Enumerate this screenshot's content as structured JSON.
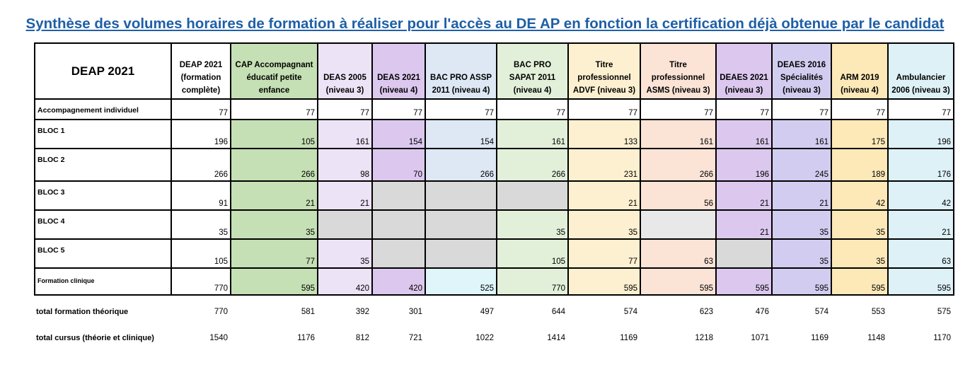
{
  "title": "Synthèse des volumes horaires de formation à réaliser pour l'accès au DE AP en fonction la certification déjà obtenue par le candidat",
  "corner_label": "DEAP 2021",
  "columns": [
    {
      "label": "DEAP 2021 (formation complète)",
      "color": "#ffffff"
    },
    {
      "label": "CAP Accompagnant éducatif petite enfance",
      "color": "#c5e0b4"
    },
    {
      "label": "DEAS 2005 (niveau 3)",
      "color": "#ede3f7"
    },
    {
      "label": "DEAS 2021 (niveau 4)",
      "color": "#dcc8ee"
    },
    {
      "label": "BAC PRO ASSP 2011 (niveau 4)",
      "color": "#dde8f4"
    },
    {
      "label": "BAC PRO SAPAT 2011 (niveau 4)",
      "color": "#e2f0d9"
    },
    {
      "label": "Titre professionnel ADVF (niveau 3)",
      "color": "#fdf0d0"
    },
    {
      "label": "Titre professionnel ASMS (niveau 3)",
      "color": "#fbe3d6"
    },
    {
      "label": "DEAES 2021 (niveau 3)",
      "color": "#dcc8ee"
    },
    {
      "label": "DEAES 2016 Spécialités (niveau 3)",
      "color": "#d2cdf0"
    },
    {
      "label": "ARM 2019 (niveau 4)",
      "color": "#fde9b8"
    },
    {
      "label": "Ambulancier 2006 (niveau 3)",
      "color": "#ddf1f6"
    }
  ],
  "gray": "#d9d9d9",
  "light_gray": "#e8e8e8",
  "rows": [
    {
      "label": "Accompagnement individuel",
      "values": [
        "77",
        "77",
        "77",
        "77",
        "77",
        "77",
        "77",
        "77",
        "77",
        "77",
        "77",
        "77"
      ],
      "white": true
    },
    {
      "label": "BLOC 1",
      "values": [
        "196",
        "105",
        "161",
        "154",
        "154",
        "161",
        "133",
        "161",
        "161",
        "161",
        "175",
        "196"
      ]
    },
    {
      "label": "BLOC 2",
      "values": [
        "266",
        "266",
        "98",
        "70",
        "266",
        "266",
        "231",
        "266",
        "196",
        "245",
        "189",
        "176"
      ]
    },
    {
      "label": "BLOC 3",
      "values": [
        "91",
        "21",
        "21",
        "",
        "",
        "",
        "21",
        "56",
        "21",
        "21",
        "42",
        "42"
      ],
      "grays": [
        3,
        4,
        5
      ]
    },
    {
      "label": "BLOC 4",
      "values": [
        "35",
        "35",
        "",
        "",
        "",
        "35",
        "35",
        "",
        "21",
        "35",
        "35",
        "21"
      ],
      "grays": [
        2,
        3,
        4
      ],
      "light_grays": [
        7
      ]
    },
    {
      "label": "BLOC 5",
      "values": [
        "105",
        "77",
        "35",
        "",
        "",
        "105",
        "77",
        "63",
        "",
        "35",
        "35",
        "63"
      ],
      "grays": [
        3,
        4,
        8
      ]
    },
    {
      "label": "Formation clinique",
      "values": [
        "770",
        "595",
        "420",
        "420",
        "525",
        "770",
        "595",
        "595",
        "595",
        "595",
        "595",
        "595"
      ],
      "small": true,
      "override_colors": {
        "4": "#dff5f9"
      }
    }
  ],
  "totals": [
    {
      "label": "total formation théorique",
      "values": [
        "770",
        "581",
        "392",
        "301",
        "497",
        "644",
        "574",
        "623",
        "476",
        "574",
        "553",
        "575"
      ]
    },
    {
      "label": "total cursus (théorie et clinique)",
      "values": [
        "1540",
        "1176",
        "812",
        "721",
        "1022",
        "1414",
        "1169",
        "1218",
        "1071",
        "1169",
        "1148",
        "1170"
      ]
    }
  ]
}
